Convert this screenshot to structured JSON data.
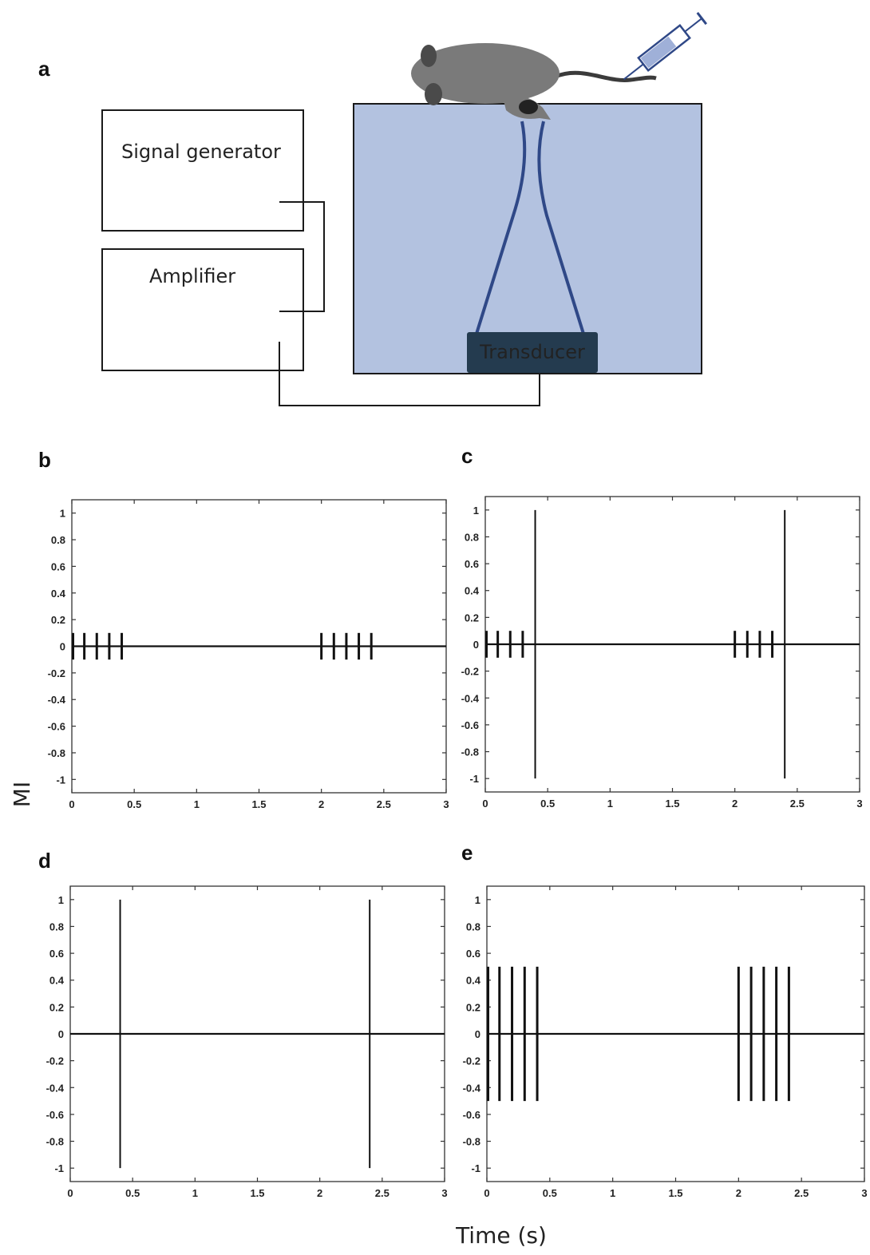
{
  "panel_labels": {
    "a": "a",
    "b": "b",
    "c": "c",
    "d": "d",
    "e": "e"
  },
  "diagram": {
    "signal_generator_label": "Signal generator",
    "amplifier_label": "Amplifier",
    "transducer_label": "Transducer",
    "colors": {
      "tank_fill": "#b3c2e0",
      "tank_stroke": "#1a1a1a",
      "horn_stroke": "#2f4887",
      "transducer_fill": "#243b4f",
      "transducer_text": "#e8eef4",
      "mouse_fill": "#7a7a7a",
      "syringe_stroke": "#2f4887",
      "syringe_fill": "#9fb0d8"
    }
  },
  "shared_axes": {
    "ylabel": "MI",
    "xlabel": "Time (s)"
  },
  "chart_data": [
    {
      "panel": "b",
      "type": "line",
      "xlim": [
        0,
        3
      ],
      "ylim": [
        -1.1,
        1.1
      ],
      "xticks": [
        "0",
        "0.5",
        "1",
        "1.5",
        "2",
        "2.5",
        "3"
      ],
      "yticks": [
        "-1",
        "-0.8",
        "-0.6",
        "-0.4",
        "-0.2",
        "0",
        "0.2",
        "0.4",
        "0.6",
        "0.8",
        "1"
      ],
      "pulses": [
        {
          "x": [
            0.0,
            0.1,
            0.2,
            0.3,
            0.4
          ],
          "amplitude": 0.1
        },
        {
          "x": [
            2.0,
            2.1,
            2.2,
            2.3,
            2.4
          ],
          "amplitude": 0.1
        }
      ]
    },
    {
      "panel": "c",
      "type": "line",
      "xlim": [
        0,
        3
      ],
      "ylim": [
        -1.1,
        1.1
      ],
      "xticks": [
        "0",
        "0.5",
        "1",
        "1.5",
        "2",
        "2.5",
        "3"
      ],
      "yticks": [
        "-1",
        "-0.8",
        "-0.6",
        "-0.4",
        "-0.2",
        "0",
        "0.2",
        "0.4",
        "0.6",
        "0.8",
        "1"
      ],
      "pulses": [
        {
          "x": [
            0.0,
            0.1,
            0.2,
            0.3
          ],
          "amplitude": 0.1
        },
        {
          "x": [
            0.4
          ],
          "amplitude": 1.0
        },
        {
          "x": [
            2.0,
            2.1,
            2.2,
            2.3
          ],
          "amplitude": 0.1
        },
        {
          "x": [
            2.4
          ],
          "amplitude": 1.0
        }
      ]
    },
    {
      "panel": "d",
      "type": "line",
      "xlim": [
        0,
        3
      ],
      "ylim": [
        -1.1,
        1.1
      ],
      "xticks": [
        "0",
        "0.5",
        "1",
        "1.5",
        "2",
        "2.5",
        "3"
      ],
      "yticks": [
        "-1",
        "-0.8",
        "-0.6",
        "-0.4",
        "-0.2",
        "0",
        "0.2",
        "0.4",
        "0.6",
        "0.8",
        "1"
      ],
      "pulses": [
        {
          "x": [
            0.4
          ],
          "amplitude": 1.0
        },
        {
          "x": [
            2.4
          ],
          "amplitude": 1.0
        }
      ]
    },
    {
      "panel": "e",
      "type": "line",
      "xlim": [
        0,
        3
      ],
      "ylim": [
        -1.1,
        1.1
      ],
      "xticks": [
        "0",
        "0.5",
        "1",
        "1.5",
        "2",
        "2.5",
        "3"
      ],
      "yticks": [
        "-1",
        "-0.8",
        "-0.6",
        "-0.4",
        "-0.2",
        "0",
        "0.2",
        "0.4",
        "0.6",
        "0.8",
        "1"
      ],
      "pulses": [
        {
          "x": [
            0.0,
            0.1,
            0.2,
            0.3,
            0.4
          ],
          "amplitude": 0.5
        },
        {
          "x": [
            2.0,
            2.1,
            2.2,
            2.3,
            2.4
          ],
          "amplitude": 0.5
        }
      ]
    }
  ]
}
